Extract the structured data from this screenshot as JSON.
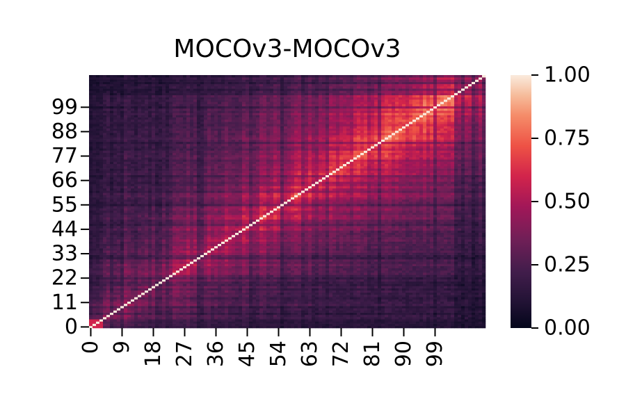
{
  "chart_data": {
    "type": "heatmap",
    "title": "MOCOv3-MOCOv3",
    "xlabel": "",
    "ylabel": "",
    "n_rows": 114,
    "n_cols": 114,
    "x_tick_labels": [
      "0",
      "9",
      "18",
      "27",
      "36",
      "45",
      "54",
      "63",
      "72",
      "81",
      "90",
      "99"
    ],
    "x_tick_indices": [
      0,
      9,
      18,
      27,
      36,
      45,
      54,
      63,
      72,
      81,
      90,
      99
    ],
    "y_tick_labels": [
      "0",
      "11",
      "22",
      "33",
      "44",
      "55",
      "66",
      "77",
      "88",
      "99"
    ],
    "y_tick_indices": [
      0,
      11,
      22,
      33,
      44,
      55,
      66,
      77,
      88,
      99
    ],
    "y_origin": "bottom",
    "value_range": [
      0.0,
      1.0
    ],
    "colormap": "rocket",
    "colorbar": {
      "tick_labels": [
        "0.00",
        "0.25",
        "0.50",
        "0.75",
        "1.00"
      ],
      "tick_values": [
        0.0,
        0.25,
        0.5,
        0.75,
        1.0
      ]
    },
    "diagonal_value": 1.0,
    "notes_on_values": ""
  }
}
